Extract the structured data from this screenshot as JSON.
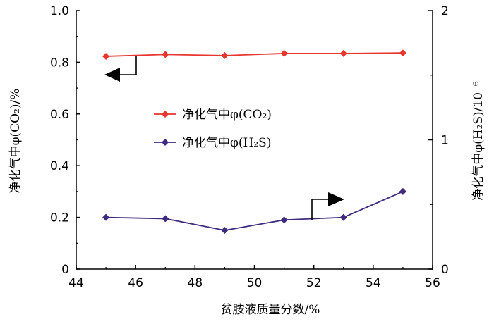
{
  "chart_data": {
    "type": "line",
    "x": [
      45,
      47,
      49,
      51,
      53,
      55
    ],
    "xlim": [
      44,
      56
    ],
    "x_ticks": [
      "44",
      "46",
      "48",
      "50",
      "52",
      "54",
      "56"
    ],
    "xlabel": "贫胺液质量分数/%",
    "ylabel_left": "净化气中φ(CO₂)/%",
    "ylabel_right": "净化气中φ(H₂S)/10⁻⁶",
    "ylim_left": [
      0,
      1.0
    ],
    "ylim_right": [
      0,
      2
    ],
    "y_ticks_left": [
      "0",
      "0.2",
      "0.4",
      "0.6",
      "0.8",
      "1.0"
    ],
    "y_ticks_right": [
      "0",
      "1",
      "2"
    ],
    "grid": false,
    "legend_position": "center-left",
    "series": [
      {
        "name": "净化气中φ(CO₂)",
        "axis": "left",
        "color": "#e8352e",
        "values": [
          0.823,
          0.83,
          0.826,
          0.834,
          0.834,
          0.836
        ]
      },
      {
        "name": "净化气中φ(H₂S)",
        "axis": "right",
        "color": "#3f2a7f",
        "values": [
          0.4,
          0.39,
          0.3,
          0.38,
          0.4,
          0.6
        ]
      }
    ]
  }
}
